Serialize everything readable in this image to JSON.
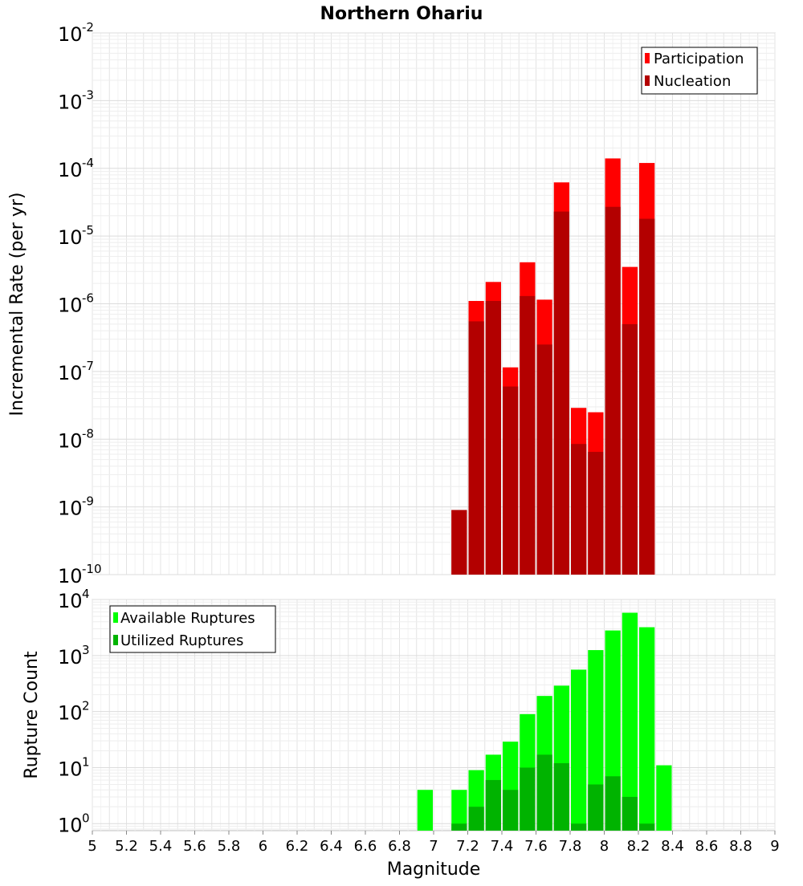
{
  "chart_data": {
    "type": "bar",
    "title": "Northern Ohariu",
    "xlabel": "Magnitude",
    "xlim": [
      5,
      9
    ],
    "x_ticks": [
      "5",
      "5.2",
      "5.4",
      "5.6",
      "5.8",
      "6",
      "6.2",
      "6.4",
      "6.6",
      "6.8",
      "7",
      "7.2",
      "7.4",
      "7.6",
      "7.8",
      "8",
      "8.2",
      "8.4",
      "8.6",
      "8.8",
      "9"
    ],
    "grid": true,
    "panels": [
      {
        "ylabel": "Incremental Rate (per yr)",
        "yscale": "log",
        "ylim": [
          1e-10,
          0.01
        ],
        "y_tick_exponents": [
          "-10",
          "-9",
          "-8",
          "-7",
          "-6",
          "-5",
          "-4",
          "-3",
          "-2"
        ],
        "legend_position": "top-right",
        "x": [
          7.15,
          7.25,
          7.35,
          7.45,
          7.55,
          7.65,
          7.75,
          7.85,
          7.95,
          8.05,
          8.15,
          8.25
        ],
        "series": [
          {
            "name": "Participation",
            "color": "#ff0000",
            "values": [
              9e-10,
              1.1e-06,
              2.1e-06,
              1.15e-07,
              4.1e-06,
              1.15e-06,
              6.2e-05,
              2.9e-08,
              2.5e-08,
              0.00014,
              3.5e-06,
              0.00012
            ]
          },
          {
            "name": "Nucleation",
            "color": "#b30000",
            "values": [
              9e-10,
              5.5e-07,
              1.1e-06,
              6e-08,
              1.3e-06,
              2.5e-07,
              2.3e-05,
              8.5e-09,
              6.5e-09,
              2.7e-05,
              5e-07,
              1.8e-05
            ]
          }
        ]
      },
      {
        "ylabel": "Rupture Count",
        "yscale": "log",
        "ylim": [
          0.75,
          10000
        ],
        "y_tick_exponents": [
          "0",
          "1",
          "2",
          "3",
          "4"
        ],
        "legend_position": "top-left",
        "x": [
          6.95,
          7.15,
          7.25,
          7.35,
          7.45,
          7.55,
          7.65,
          7.75,
          7.85,
          7.95,
          8.05,
          8.15,
          8.25,
          8.35
        ],
        "series": [
          {
            "name": "Available Ruptures",
            "color": "#00ff00",
            "values": [
              4,
              4,
              9,
              17,
              29,
              90,
              190,
              290,
              560,
              1250,
              2800,
              5800,
              3200,
              11
            ]
          },
          {
            "name": "Utilized Ruptures",
            "color": "#00b300",
            "values": [
              0,
              1,
              2,
              6,
              4,
              10,
              17,
              12,
              1,
              5,
              7,
              3,
              1,
              0
            ]
          }
        ]
      }
    ]
  }
}
